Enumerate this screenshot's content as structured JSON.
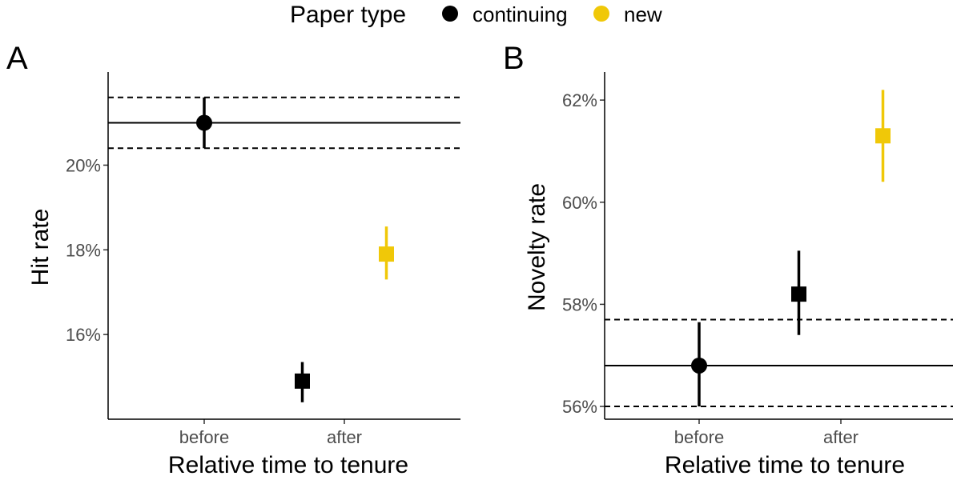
{
  "colors": {
    "continuing": "#000000",
    "new": "#F0C808"
  },
  "legend": {
    "title": "Paper type",
    "items": [
      {
        "label": "continuing",
        "color": "#000000"
      },
      {
        "label": "new",
        "color": "#F0C808"
      }
    ]
  },
  "chart_data": [
    {
      "type": "scatter",
      "panel_label": "A",
      "xlabel": "Relative time to tenure",
      "ylabel": "Hit rate",
      "categories": [
        "before",
        "after"
      ],
      "ylim": [
        14.0,
        22.2
      ],
      "yticks": [
        16,
        18,
        20
      ],
      "ytick_labels": [
        "16%",
        "18%",
        "20%"
      ],
      "reference": {
        "line": 21.0,
        "lower": 20.4,
        "upper": 21.6
      },
      "points": [
        {
          "series": "continuing",
          "category": "before",
          "offset": 0,
          "shape": "circle",
          "y": 21.0,
          "lo": 20.4,
          "hi": 21.6
        },
        {
          "series": "continuing",
          "category": "after",
          "offset": -0.3,
          "shape": "square",
          "y": 14.9,
          "lo": 14.4,
          "hi": 15.35
        },
        {
          "series": "new",
          "category": "after",
          "offset": 0.3,
          "shape": "square",
          "y": 17.9,
          "lo": 17.3,
          "hi": 18.55
        }
      ]
    },
    {
      "type": "scatter",
      "panel_label": "B",
      "xlabel": "Relative time to tenure",
      "ylabel": "Novelty rate",
      "categories": [
        "before",
        "after"
      ],
      "ylim": [
        55.75,
        62.55
      ],
      "yticks": [
        56,
        58,
        60,
        62
      ],
      "ytick_labels": [
        "56%",
        "58%",
        "60%",
        "62%"
      ],
      "reference": {
        "line": 56.8,
        "lower": 56.0,
        "upper": 57.7
      },
      "points": [
        {
          "series": "continuing",
          "category": "before",
          "offset": 0,
          "shape": "circle",
          "y": 56.8,
          "lo": 56.0,
          "hi": 57.65
        },
        {
          "series": "continuing",
          "category": "after",
          "offset": -0.3,
          "shape": "square",
          "y": 58.2,
          "lo": 57.4,
          "hi": 59.05
        },
        {
          "series": "new",
          "category": "after",
          "offset": 0.3,
          "shape": "square",
          "y": 61.3,
          "lo": 60.4,
          "hi": 62.2
        }
      ]
    }
  ]
}
